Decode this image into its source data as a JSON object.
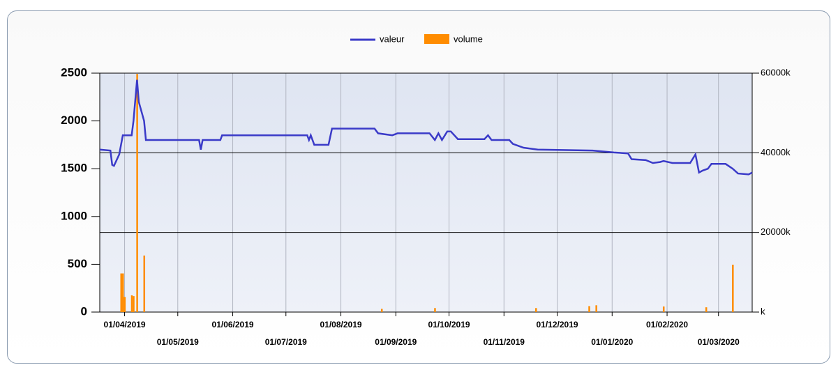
{
  "chart_data": {
    "type": "combo",
    "legend_position": "top",
    "x_grid": true,
    "y2_grid": true,
    "xlim": [
      "18/03/2019",
      "20/03/2020"
    ],
    "xticks": [
      "01/04/2019",
      "01/05/2019",
      "01/06/2019",
      "01/07/2019",
      "01/08/2019",
      "01/09/2019",
      "01/10/2019",
      "01/11/2019",
      "01/12/2019",
      "01/01/2020",
      "01/02/2020",
      "01/03/2020"
    ],
    "ylim": [
      0,
      2500
    ],
    "yticks": [
      0,
      500,
      1000,
      1500,
      2000,
      2500
    ],
    "y2lim": [
      0,
      60000
    ],
    "y2ticks": [
      {
        "value": 0,
        "label": "k"
      },
      {
        "value": 20000,
        "label": "20000k"
      },
      {
        "value": 40000,
        "label": "40000k"
      },
      {
        "value": 60000,
        "label": "60000k"
      }
    ],
    "series": [
      {
        "name": "valeur",
        "type": "line",
        "color": "#3a3ac8",
        "x": [
          "18/03/2019",
          "24/03/2019",
          "25/03/2019",
          "26/03/2019",
          "29/03/2019",
          "31/03/2019",
          "05/04/2019",
          "06/04/2019",
          "08/04/2019",
          "09/04/2019",
          "12/04/2019",
          "13/04/2019",
          "13/05/2019",
          "14/05/2019",
          "15/05/2019",
          "25/05/2019",
          "26/05/2019",
          "13/07/2019",
          "14/07/2019",
          "15/07/2019",
          "17/07/2019",
          "25/07/2019",
          "27/07/2019",
          "20/08/2019",
          "22/08/2019",
          "30/08/2019",
          "02/09/2019",
          "20/09/2019",
          "23/09/2019",
          "25/09/2019",
          "27/09/2019",
          "30/09/2019",
          "02/10/2019",
          "06/10/2019",
          "21/10/2019",
          "23/10/2019",
          "25/10/2019",
          "04/11/2019",
          "06/11/2019",
          "12/11/2019",
          "20/11/2019",
          "21/12/2019",
          "02/01/2020",
          "10/01/2020",
          "12/01/2020",
          "20/01/2020",
          "24/01/2020",
          "28/01/2020",
          "30/01/2020",
          "04/02/2020",
          "14/02/2020",
          "17/02/2020",
          "19/02/2020",
          "21/02/2020",
          "24/02/2020",
          "26/02/2020",
          "05/03/2020",
          "09/03/2020",
          "12/03/2020",
          "18/03/2020",
          "20/03/2020"
        ],
        "values": [
          1700,
          1690,
          1540,
          1530,
          1650,
          1850,
          1850,
          2000,
          2430,
          2200,
          2000,
          1800,
          1800,
          1700,
          1800,
          1800,
          1850,
          1850,
          1800,
          1850,
          1750,
          1750,
          1920,
          1920,
          1870,
          1850,
          1870,
          1870,
          1800,
          1870,
          1800,
          1890,
          1890,
          1810,
          1810,
          1850,
          1800,
          1800,
          1760,
          1720,
          1700,
          1690,
          1670,
          1660,
          1600,
          1590,
          1560,
          1570,
          1580,
          1560,
          1560,
          1650,
          1460,
          1480,
          1500,
          1550,
          1550,
          1500,
          1450,
          1440,
          1460
        ]
      },
      {
        "name": "volume",
        "type": "bar",
        "axis": "y2",
        "color": "#ff8c00",
        "x": [
          "30/03/2019",
          "31/03/2019",
          "01/04/2019",
          "05/04/2019",
          "06/04/2019",
          "08/04/2019",
          "12/04/2019",
          "24/08/2019",
          "23/09/2019",
          "19/11/2019",
          "19/12/2019",
          "23/12/2019",
          "30/01/2020",
          "23/02/2020",
          "09/03/2020"
        ],
        "values": [
          9700,
          9700,
          3800,
          4200,
          4000,
          59800,
          14200,
          800,
          1000,
          1000,
          1500,
          1700,
          1400,
          1200,
          11900
        ]
      }
    ]
  }
}
